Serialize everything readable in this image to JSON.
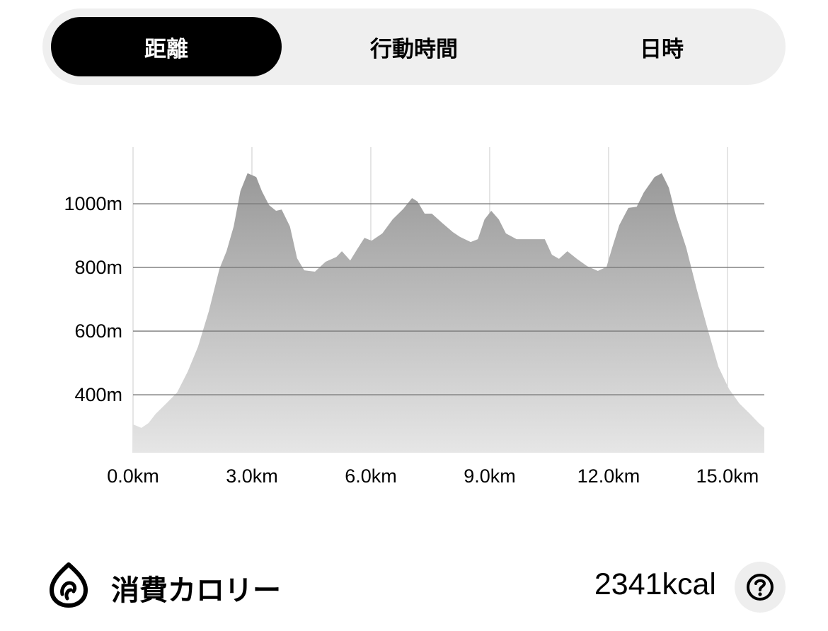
{
  "tabs": [
    {
      "label": "距離",
      "active": true
    },
    {
      "label": "行動時間",
      "active": false
    },
    {
      "label": "日時",
      "active": false
    }
  ],
  "chart_data": {
    "type": "area",
    "xlabel": "",
    "ylabel": "",
    "xlim": [
      0,
      15.93
    ],
    "ylim": [
      218,
      1178
    ],
    "xticks": [
      0,
      3,
      6,
      9,
      12,
      15
    ],
    "xtick_labels": [
      "0.0km",
      "3.0km",
      "6.0km",
      "9.0km",
      "12.0km",
      "15.0km"
    ],
    "yticks": [
      400,
      600,
      800,
      1000
    ],
    "ytick_labels": [
      "400m",
      "600m",
      "800m",
      "1000m"
    ],
    "grid": true,
    "fill_color_top": "#999999",
    "fill_color_bottom": "#e6e6e6",
    "x": [
      0,
      0.21,
      0.39,
      0.57,
      0.84,
      1.11,
      1.38,
      1.64,
      1.91,
      2.18,
      2.36,
      2.54,
      2.71,
      2.89,
      3.02,
      3.11,
      3.25,
      3.43,
      3.61,
      3.75,
      3.96,
      4.14,
      4.32,
      4.59,
      4.86,
      5.13,
      5.27,
      5.48,
      5.66,
      5.84,
      6.02,
      6.29,
      6.55,
      6.82,
      7.04,
      7.18,
      7.36,
      7.54,
      7.8,
      8.07,
      8.25,
      8.52,
      8.7,
      8.87,
      9.04,
      9.23,
      9.41,
      9.68,
      10.04,
      10.39,
      10.57,
      10.75,
      10.96,
      11.2,
      11.46,
      11.73,
      11.95,
      12.09,
      12.27,
      12.5,
      12.71,
      12.89,
      13.16,
      13.34,
      13.52,
      13.7,
      13.96,
      14.23,
      14.5,
      14.77,
      15.04,
      15.3,
      15.57,
      15.79,
      15.93
    ],
    "y": [
      307,
      296,
      311,
      340,
      373,
      407,
      473,
      551,
      662,
      796,
      851,
      929,
      1040,
      1096,
      1089,
      1084,
      1040,
      996,
      978,
      982,
      929,
      829,
      791,
      787,
      818,
      833,
      851,
      822,
      858,
      893,
      884,
      907,
      951,
      984,
      1018,
      1007,
      969,
      969,
      940,
      911,
      896,
      880,
      889,
      951,
      978,
      951,
      907,
      889,
      889,
      889,
      840,
      827,
      851,
      827,
      804,
      789,
      802,
      862,
      933,
      987,
      991,
      1036,
      1084,
      1096,
      1051,
      962,
      862,
      729,
      607,
      489,
      418,
      373,
      340,
      311,
      296
    ]
  },
  "calories": {
    "label": "消費カロリー",
    "value": "2341kcal",
    "icon": "flame-icon",
    "help_icon": "question-circle-icon"
  }
}
